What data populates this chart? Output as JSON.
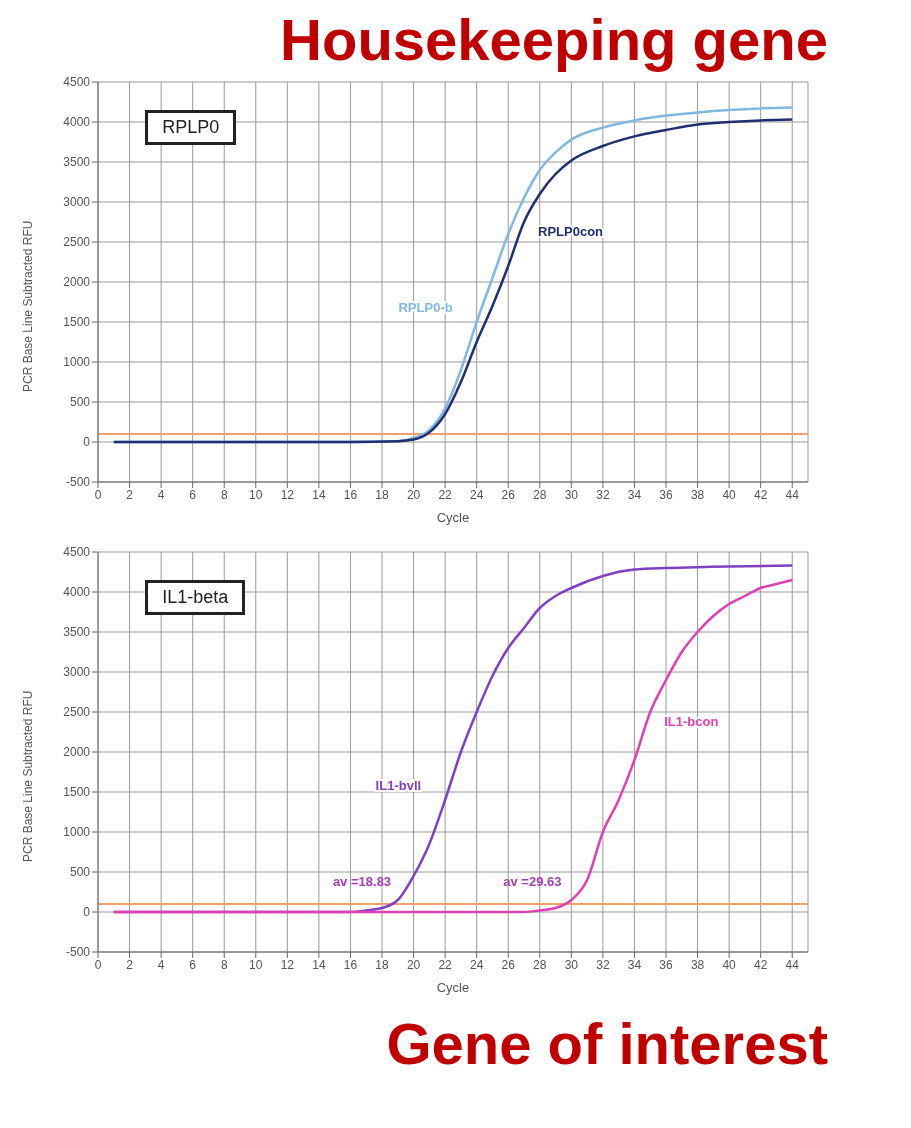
{
  "chart_data": [
    {
      "type": "line",
      "title": "Housekeeping gene",
      "xlabel": "Cycle",
      "ylabel": "PCR Base Line Subtracted RFU",
      "xlim": [
        0,
        45
      ],
      "xticks": [
        0,
        2,
        4,
        6,
        8,
        10,
        12,
        14,
        16,
        18,
        20,
        22,
        24,
        26,
        28,
        30,
        32,
        34,
        36,
        38,
        40,
        42,
        44
      ],
      "ylim": [
        -500,
        4500
      ],
      "yticks": [
        -500,
        0,
        500,
        1000,
        1500,
        2000,
        2500,
        3000,
        3500,
        4000,
        4500
      ],
      "grid": true,
      "marker": "none",
      "line_style": "solid",
      "ref_lines": [
        {
          "axis": "y",
          "value": 100,
          "color": "#f0a070"
        }
      ],
      "annotations": [
        "RPLP0"
      ],
      "series": [
        {
          "name": "RPLP0-b",
          "color": "#7fb8e0",
          "x": [
            1,
            4,
            8,
            12,
            16,
            19,
            20,
            21,
            22,
            23,
            24,
            25,
            26,
            27,
            28,
            29,
            30,
            32,
            34,
            36,
            38,
            40,
            42,
            44
          ],
          "values": [
            0,
            0,
            0,
            0,
            0,
            10,
            50,
            150,
            420,
            900,
            1500,
            2050,
            2600,
            3050,
            3400,
            3620,
            3780,
            3930,
            4020,
            4080,
            4120,
            4150,
            4170,
            4180
          ]
        },
        {
          "name": "RPLP0con",
          "color": "#1f2f6f",
          "x": [
            1,
            4,
            8,
            12,
            16,
            19,
            20,
            21,
            22,
            23,
            24,
            25,
            26,
            27,
            28,
            29,
            30,
            32,
            34,
            36,
            38,
            40,
            42,
            44
          ],
          "values": [
            0,
            0,
            0,
            0,
            0,
            10,
            30,
            120,
            350,
            750,
            1250,
            1700,
            2200,
            2750,
            3100,
            3350,
            3520,
            3700,
            3820,
            3900,
            3970,
            4000,
            4020,
            4030
          ]
        }
      ]
    },
    {
      "type": "line",
      "xlabel": "Cycle",
      "ylabel": "PCR Base Line Subtracted RFU",
      "xlim": [
        0,
        45
      ],
      "xticks": [
        0,
        2,
        4,
        6,
        8,
        10,
        12,
        14,
        16,
        18,
        20,
        22,
        24,
        26,
        28,
        30,
        32,
        34,
        36,
        38,
        40,
        42,
        44
      ],
      "ylim": [
        -500,
        4500
      ],
      "yticks": [
        -500,
        0,
        500,
        1000,
        1500,
        2000,
        2500,
        3000,
        3500,
        4000,
        4500
      ],
      "grid": true,
      "marker": "none",
      "line_style": "solid",
      "ref_lines": [
        {
          "axis": "y",
          "value": 100,
          "color": "#f0a070"
        }
      ],
      "annotations": [
        "IL1-beta",
        {
          "text": "av =18.83",
          "x": 18.83,
          "y": 100
        },
        {
          "text": "av =29.63",
          "x": 29.63,
          "y": 100
        },
        "Gene of interest"
      ],
      "series": [
        {
          "name": "IL1-bvll",
          "color": "#8040c0",
          "x": [
            1,
            4,
            8,
            12,
            16,
            17,
            18,
            19,
            20,
            21,
            22,
            23,
            24,
            25,
            26,
            27,
            28,
            29,
            30,
            32,
            34,
            36,
            38,
            40,
            44
          ],
          "values": [
            0,
            0,
            0,
            0,
            0,
            20,
            50,
            150,
            450,
            850,
            1400,
            2000,
            2500,
            2950,
            3300,
            3550,
            3800,
            3950,
            4050,
            4200,
            4280,
            4300,
            4310,
            4320,
            4330
          ]
        },
        {
          "name": "IL1-bcon",
          "color": "#e040b0",
          "x": [
            1,
            4,
            8,
            12,
            16,
            20,
            24,
            27,
            28,
            29,
            30,
            31,
            32,
            33,
            34,
            35,
            36,
            37,
            38,
            39,
            40,
            41,
            42,
            43,
            44
          ],
          "values": [
            0,
            0,
            0,
            0,
            0,
            0,
            0,
            0,
            20,
            50,
            150,
            400,
            1000,
            1400,
            1900,
            2500,
            2900,
            3250,
            3500,
            3700,
            3850,
            3950,
            4050,
            4100,
            4150
          ]
        }
      ]
    }
  ]
}
